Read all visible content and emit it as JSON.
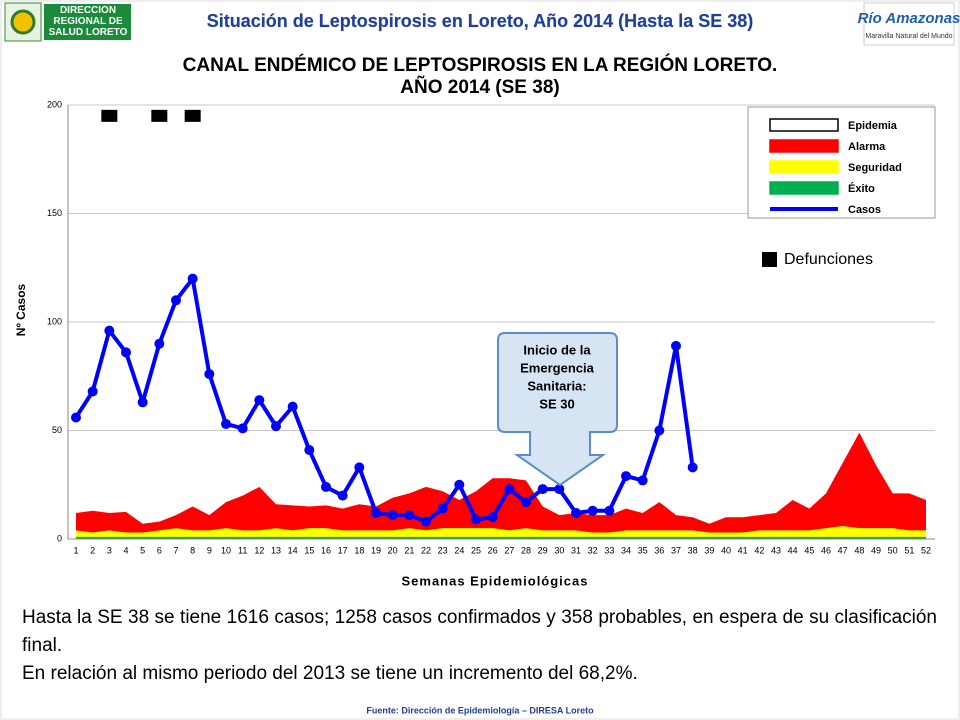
{
  "header": {
    "title": "Situación de Leptospirosis en Loreto, Año 2014 (Hasta la SE 38)",
    "left_logo": "DIRECCIÓN REGIONAL DE SALUD LORETO",
    "right_logo": [
      "Río Amazonas",
      "Maravilla Natural del Mundo"
    ]
  },
  "chart_data": {
    "type": "endemic-channel",
    "title": [
      "CANAL ENDÉMICO DE LEPTOSPIROSIS EN LA REGIÓN LORETO.",
      "AÑO 2014 (SE 38)"
    ],
    "y_label": "Nº Casos",
    "x_label": "Semanas Epidemiológicas",
    "categories": [
      "1",
      "2",
      "3",
      "4",
      "5",
      "6",
      "7",
      "8",
      "9",
      "10",
      "11",
      "12",
      "13",
      "14",
      "15",
      "16",
      "17",
      "18",
      "19",
      "20",
      "21",
      "22",
      "23",
      "24",
      "25",
      "26",
      "27",
      "28",
      "29",
      "30",
      "31",
      "32",
      "33",
      "34",
      "35",
      "36",
      "37",
      "38",
      "39",
      "40",
      "41",
      "42",
      "43",
      "44",
      "45",
      "46",
      "47",
      "48",
      "49",
      "50",
      "51",
      "52"
    ],
    "ylim": [
      0,
      200
    ],
    "yticks": [
      0,
      50,
      100,
      150,
      200
    ],
    "grid": true,
    "epidemia": {
      "name": "Epidemia",
      "color": "#ffffff"
    },
    "series": [
      {
        "name": "Alarma",
        "color": "#ff0000",
        "style": "area",
        "values": [
          12,
          13,
          12,
          12.5,
          7,
          8,
          11,
          15,
          11,
          17,
          20,
          24,
          16,
          15.5,
          15,
          15.5,
          14,
          16,
          15,
          19,
          21,
          24,
          22,
          18,
          22,
          28,
          28,
          27,
          15,
          11,
          12,
          11,
          11,
          14,
          12,
          17,
          11,
          10,
          7,
          10,
          10,
          11,
          12,
          18,
          14,
          21,
          35,
          49,
          34,
          21,
          21,
          18
        ]
      },
      {
        "name": "Seguridad",
        "color": "#ffff00",
        "style": "area",
        "values": [
          4,
          3,
          4,
          3,
          3,
          4,
          5,
          4,
          4,
          5,
          4,
          4,
          5,
          4,
          5,
          5,
          4,
          4,
          4,
          4,
          5,
          4,
          5,
          5,
          5,
          5,
          4,
          5,
          4,
          4,
          4,
          3,
          3,
          4,
          4,
          4,
          4,
          4,
          3,
          3,
          3,
          4,
          4,
          4,
          4,
          5,
          6,
          5,
          5,
          5,
          4,
          4
        ]
      },
      {
        "name": "Éxito",
        "color": "#00b050",
        "style": "area",
        "values": [
          1,
          1,
          1,
          1,
          1,
          1,
          1,
          1,
          1,
          1,
          1,
          1,
          1,
          1,
          1,
          1,
          1,
          1,
          1,
          1,
          1,
          1,
          1,
          1,
          1,
          1,
          1,
          1,
          1,
          1,
          1,
          1,
          1,
          1,
          1,
          1,
          1,
          1,
          1,
          1,
          1,
          1,
          1,
          1,
          1,
          1,
          1,
          1,
          1,
          1,
          1,
          1
        ]
      },
      {
        "name": "Casos",
        "color": "#0000ff",
        "style": "line",
        "values": [
          56,
          68,
          96,
          86,
          63,
          90,
          110,
          120,
          76,
          53,
          51,
          64,
          52,
          61,
          41,
          24,
          20,
          33,
          12,
          11,
          11,
          8,
          14,
          25,
          9,
          10,
          23,
          17,
          23,
          23,
          12,
          13,
          13,
          29,
          27,
          50,
          89,
          33,
          null,
          null,
          null,
          null,
          null,
          null,
          null,
          null,
          null,
          null,
          null,
          null,
          null,
          null
        ]
      }
    ],
    "defunciones": {
      "name": "Defunciones",
      "color": "#000000",
      "values": [
        null,
        null,
        195,
        null,
        null,
        195,
        null,
        195,
        null,
        null,
        null,
        null,
        null,
        null,
        null,
        null,
        null,
        null,
        null,
        null,
        null,
        null,
        null,
        null,
        null,
        null,
        null,
        null,
        null,
        null,
        null,
        null,
        null,
        null,
        null,
        null,
        null,
        null,
        null,
        null,
        null,
        null,
        null,
        null,
        null,
        null,
        null,
        null,
        null,
        null,
        null,
        null
      ]
    },
    "annotation": [
      "Inicio de la",
      "Emergencia",
      "Sanitaria:",
      "SE 30"
    ]
  },
  "body": [
    "Hasta la SE 38 se tiene 1616 casos; 1258 casos confirmados y 358 probables, en espera de su clasificación final.",
    "En relación al mismo periodo del 2013 se tiene un incremento del 68,2%."
  ],
  "footer": "Fuente: Dirección de Epidemiología – DIRESA Loreto"
}
